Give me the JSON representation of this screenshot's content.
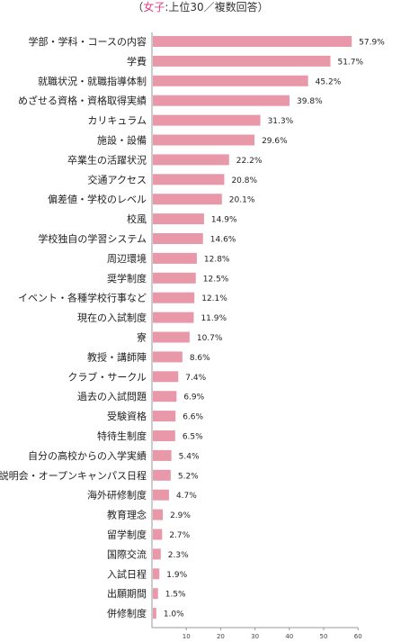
{
  "header": {
    "paren_open": "（",
    "highlight": "女子",
    "rest": ":上位30／複数回答",
    "paren_close": "）"
  },
  "chart_data": {
    "type": "bar",
    "orientation": "horizontal",
    "categories": [
      "学部・学科・コースの内容",
      "学費",
      "就職状況・就職指導体制",
      "めざせる資格・資格取得実績",
      "カリキュラム",
      "施設・設備",
      "卒業生の活躍状況",
      "交通アクセス",
      "偏差値・学校のレベル",
      "校風",
      "学校独自の学習システム",
      "周辺環境",
      "奨学制度",
      "イベント・各種学校行事など",
      "現在の入試制度",
      "寮",
      "教授・講師陣",
      "クラブ・サークル",
      "過去の入試問題",
      "受験資格",
      "特待生制度",
      "自分の高校からの入学実績",
      "説明会・オープンキャンパス日程",
      "海外研修制度",
      "教育理念",
      "留学制度",
      "国際交流",
      "入試日程",
      "出願期間",
      "併修制度"
    ],
    "values": [
      57.9,
      51.7,
      45.2,
      39.8,
      31.3,
      29.6,
      22.2,
      20.8,
      20.1,
      14.9,
      14.6,
      12.8,
      12.5,
      12.1,
      11.9,
      10.7,
      8.6,
      7.4,
      6.9,
      6.6,
      6.5,
      5.4,
      5.2,
      4.7,
      2.9,
      2.7,
      2.3,
      1.9,
      1.5,
      1.0
    ],
    "value_labels": [
      "57.9%",
      "51.7%",
      "45.2%",
      "39.8%",
      "31.3%",
      "29.6%",
      "22.2%",
      "20.8%",
      "20.1%",
      "14.9%",
      "14.6%",
      "12.8%",
      "12.5%",
      "12.1%",
      "11.9%",
      "10.7%",
      "8.6%",
      "7.4%",
      "6.9%",
      "6.6%",
      "6.5%",
      "5.4%",
      "5.2%",
      "4.7%",
      "2.9%",
      "2.7%",
      "2.3%",
      "1.9%",
      "1.5%",
      "1.0%"
    ],
    "xlim": [
      0,
      60
    ],
    "xticks": [
      "10",
      "20",
      "30",
      "40",
      "50",
      "60"
    ],
    "xtick_values": [
      10,
      20,
      30,
      40,
      50,
      60
    ],
    "bar_color": "#e898a8",
    "grid": false
  }
}
